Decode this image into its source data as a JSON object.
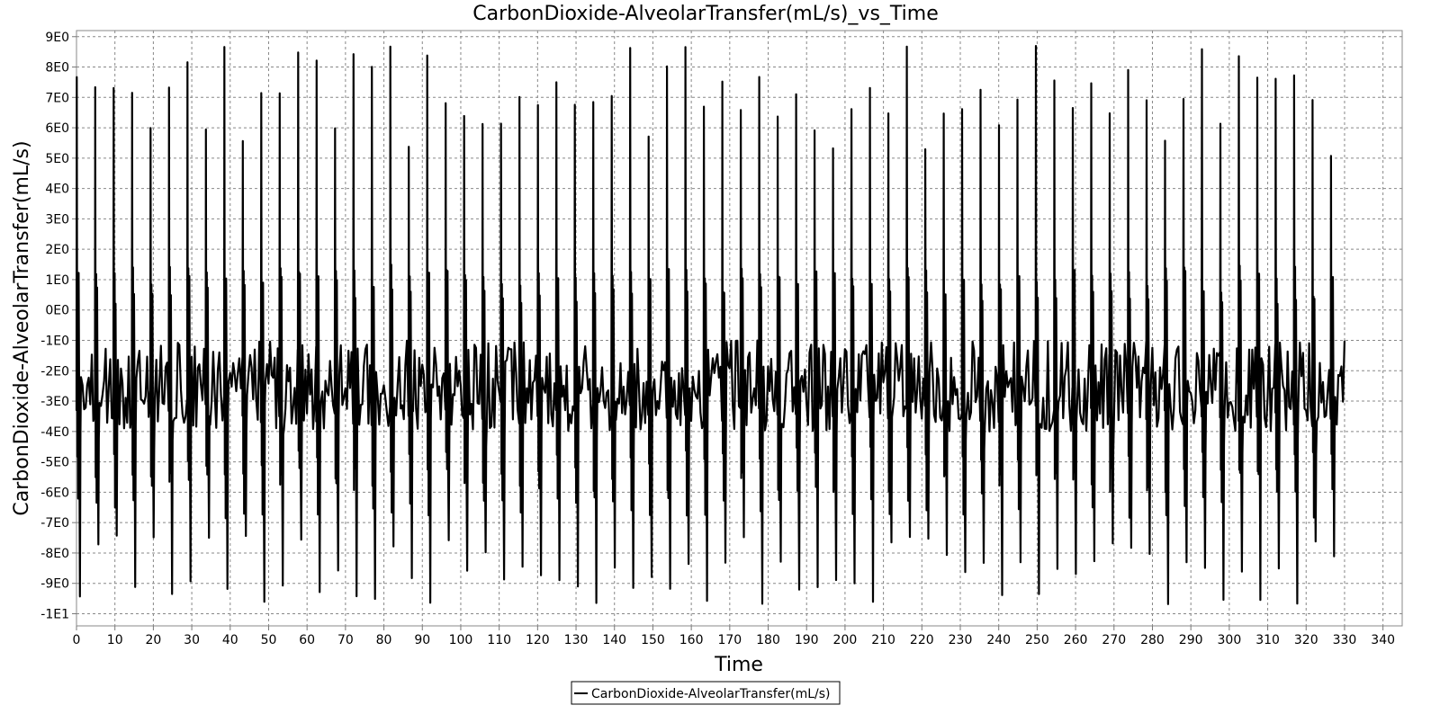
{
  "chart_data": {
    "type": "line",
    "title": "CarbonDioxide-AlveolarTransfer(mL/s)_vs_Time",
    "xlabel": "Time",
    "ylabel": "CarbonDioxide-AlveolarTransfer(mL/s)",
    "xlim": [
      0,
      345
    ],
    "ylim": [
      -10.4,
      9.2
    ],
    "x_ticks": [
      0,
      10,
      20,
      30,
      40,
      50,
      60,
      70,
      80,
      90,
      100,
      110,
      120,
      130,
      140,
      150,
      160,
      170,
      180,
      190,
      200,
      210,
      220,
      230,
      240,
      250,
      260,
      270,
      280,
      290,
      300,
      310,
      320,
      330,
      340
    ],
    "x_tick_labels": [
      "0",
      "10",
      "20",
      "30",
      "40",
      "50",
      "60",
      "70",
      "80",
      "90",
      "100",
      "110",
      "120",
      "130",
      "140",
      "150",
      "160",
      "170",
      "180",
      "190",
      "200",
      "210",
      "220",
      "230",
      "240",
      "250",
      "260",
      "270",
      "280",
      "290",
      "300",
      "310",
      "320",
      "330",
      "340"
    ],
    "y_ticks": [
      9,
      8,
      7,
      6,
      5,
      4,
      3,
      2,
      1,
      0,
      -1,
      -2,
      -3,
      -4,
      -5,
      -6,
      -7,
      -8,
      -9,
      -10
    ],
    "y_tick_labels": [
      "9E0",
      "8E0",
      "7E0",
      "6E0",
      "5E0",
      "4E0",
      "3E0",
      "2E0",
      "1E0",
      "0E0",
      "-1E0",
      "-2E0",
      "-3E0",
      "-4E0",
      "-5E0",
      "-6E0",
      "-7E0",
      "-8E0",
      "-9E0",
      "-1E1"
    ],
    "grid": true,
    "legend_position": "bottom-center",
    "series": [
      {
        "name": "CarbonDioxide-AlveolarTransfer(mL/s)",
        "color": "#000000",
        "x_range": [
          0,
          330
        ],
        "breath_period": 4.8,
        "cardiac_period": 0.8,
        "peak_range": [
          5.0,
          8.7
        ],
        "trough_range": [
          -9.8,
          -7.4
        ],
        "baseline_range": [
          -4.0,
          -1.0
        ]
      }
    ]
  }
}
